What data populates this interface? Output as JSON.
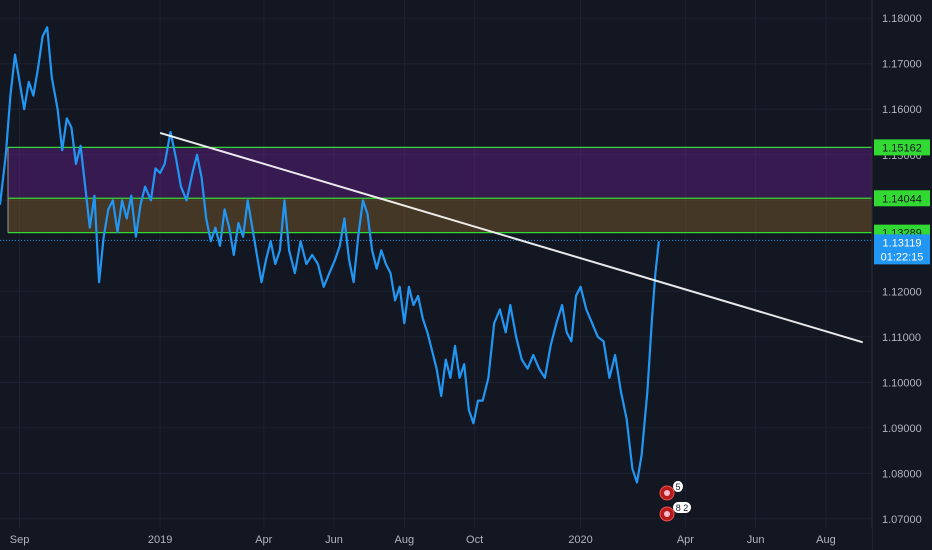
{
  "chart_data": {
    "type": "line",
    "title": "",
    "xlabel": "",
    "ylabel": "",
    "x_range": [
      "2018-08-15",
      "2020-09-10"
    ],
    "ylim": [
      1.068,
      1.184
    ],
    "grid": true,
    "legend": "none",
    "x_ticks": [
      {
        "date": "2018-09-01",
        "label": "Sep"
      },
      {
        "date": "2019-01-01",
        "label": "2019"
      },
      {
        "date": "2019-04-01",
        "label": "Apr"
      },
      {
        "date": "2019-06-01",
        "label": "Jun"
      },
      {
        "date": "2019-08-01",
        "label": "Aug"
      },
      {
        "date": "2019-10-01",
        "label": "Oct"
      },
      {
        "date": "2020-01-01",
        "label": "2020"
      },
      {
        "date": "2020-04-01",
        "label": "Apr"
      },
      {
        "date": "2020-06-01",
        "label": "Jun"
      },
      {
        "date": "2020-08-01",
        "label": "Aug"
      }
    ],
    "y_ticks": [
      {
        "value": 1.18,
        "label": "1.18000"
      },
      {
        "value": 1.17,
        "label": "1.17000"
      },
      {
        "value": 1.16,
        "label": "1.16000"
      },
      {
        "value": 1.15,
        "label": "1.15000"
      },
      {
        "value": 1.14,
        "label": "1.14000"
      },
      {
        "value": 1.12,
        "label": "1.12000"
      },
      {
        "value": 1.11,
        "label": "1.11000"
      },
      {
        "value": 1.1,
        "label": "1.10000"
      },
      {
        "value": 1.09,
        "label": "1.09000"
      },
      {
        "value": 1.08,
        "label": "1.08000"
      },
      {
        "value": 1.07,
        "label": "1.07000"
      }
    ],
    "series": [
      {
        "color": "#2196f3",
        "points": [
          [
            "2018-08-15",
            1.139
          ],
          [
            "2018-08-20",
            1.15
          ],
          [
            "2018-08-24",
            1.163
          ],
          [
            "2018-08-28",
            1.172
          ],
          [
            "2018-09-01",
            1.166
          ],
          [
            "2018-09-05",
            1.16
          ],
          [
            "2018-09-09",
            1.166
          ],
          [
            "2018-09-13",
            1.163
          ],
          [
            "2018-09-17",
            1.169
          ],
          [
            "2018-09-21",
            1.176
          ],
          [
            "2018-09-25",
            1.178
          ],
          [
            "2018-09-29",
            1.167
          ],
          [
            "2018-10-04",
            1.16
          ],
          [
            "2018-10-08",
            1.151
          ],
          [
            "2018-10-12",
            1.158
          ],
          [
            "2018-10-16",
            1.156
          ],
          [
            "2018-10-20",
            1.148
          ],
          [
            "2018-10-24",
            1.152
          ],
          [
            "2018-10-28",
            1.143
          ],
          [
            "2018-11-01",
            1.134
          ],
          [
            "2018-11-05",
            1.141
          ],
          [
            "2018-11-09",
            1.122
          ],
          [
            "2018-11-13",
            1.132
          ],
          [
            "2018-11-17",
            1.138
          ],
          [
            "2018-11-21",
            1.14
          ],
          [
            "2018-11-25",
            1.133
          ],
          [
            "2018-11-29",
            1.14
          ],
          [
            "2018-12-03",
            1.136
          ],
          [
            "2018-12-07",
            1.141
          ],
          [
            "2018-12-11",
            1.132
          ],
          [
            "2018-12-15",
            1.139
          ],
          [
            "2018-12-19",
            1.143
          ],
          [
            "2018-12-24",
            1.14
          ],
          [
            "2018-12-28",
            1.147
          ],
          [
            "2019-01-01",
            1.146
          ],
          [
            "2019-01-05",
            1.148
          ],
          [
            "2019-01-10",
            1.155
          ],
          [
            "2019-01-15",
            1.149
          ],
          [
            "2019-01-19",
            1.143
          ],
          [
            "2019-01-24",
            1.14
          ],
          [
            "2019-01-29",
            1.146
          ],
          [
            "2019-02-02",
            1.15
          ],
          [
            "2019-02-06",
            1.145
          ],
          [
            "2019-02-10",
            1.136
          ],
          [
            "2019-02-14",
            1.131
          ],
          [
            "2019-02-18",
            1.134
          ],
          [
            "2019-02-22",
            1.13
          ],
          [
            "2019-02-26",
            1.138
          ],
          [
            "2019-03-02",
            1.134
          ],
          [
            "2019-03-06",
            1.128
          ],
          [
            "2019-03-10",
            1.135
          ],
          [
            "2019-03-14",
            1.132
          ],
          [
            "2019-03-18",
            1.14
          ],
          [
            "2019-03-22",
            1.134
          ],
          [
            "2019-03-26",
            1.128
          ],
          [
            "2019-03-30",
            1.122
          ],
          [
            "2019-04-03",
            1.127
          ],
          [
            "2019-04-07",
            1.131
          ],
          [
            "2019-04-11",
            1.126
          ],
          [
            "2019-04-15",
            1.129
          ],
          [
            "2019-04-19",
            1.14
          ],
          [
            "2019-04-23",
            1.129
          ],
          [
            "2019-04-28",
            1.124
          ],
          [
            "2019-05-03",
            1.131
          ],
          [
            "2019-05-08",
            1.126
          ],
          [
            "2019-05-13",
            1.128
          ],
          [
            "2019-05-18",
            1.126
          ],
          [
            "2019-05-23",
            1.121
          ],
          [
            "2019-05-28",
            1.124
          ],
          [
            "2019-06-02",
            1.127
          ],
          [
            "2019-06-06",
            1.13
          ],
          [
            "2019-06-10",
            1.136
          ],
          [
            "2019-06-14",
            1.127
          ],
          [
            "2019-06-18",
            1.122
          ],
          [
            "2019-06-22",
            1.132
          ],
          [
            "2019-06-26",
            1.14
          ],
          [
            "2019-06-30",
            1.137
          ],
          [
            "2019-07-04",
            1.129
          ],
          [
            "2019-07-08",
            1.125
          ],
          [
            "2019-07-12",
            1.129
          ],
          [
            "2019-07-16",
            1.126
          ],
          [
            "2019-07-20",
            1.124
          ],
          [
            "2019-07-24",
            1.118
          ],
          [
            "2019-07-28",
            1.121
          ],
          [
            "2019-08-01",
            1.113
          ],
          [
            "2019-08-05",
            1.121
          ],
          [
            "2019-08-09",
            1.117
          ],
          [
            "2019-08-13",
            1.119
          ],
          [
            "2019-08-17",
            1.114
          ],
          [
            "2019-08-21",
            1.111
          ],
          [
            "2019-08-25",
            1.107
          ],
          [
            "2019-08-29",
            1.103
          ],
          [
            "2019-09-02",
            1.097
          ],
          [
            "2019-09-06",
            1.105
          ],
          [
            "2019-09-10",
            1.101
          ],
          [
            "2019-09-14",
            1.108
          ],
          [
            "2019-09-18",
            1.101
          ],
          [
            "2019-09-22",
            1.104
          ],
          [
            "2019-09-26",
            1.094
          ],
          [
            "2019-09-30",
            1.091
          ],
          [
            "2019-10-04",
            1.096
          ],
          [
            "2019-10-08",
            1.096
          ],
          [
            "2019-10-13",
            1.101
          ],
          [
            "2019-10-18",
            1.113
          ],
          [
            "2019-10-23",
            1.116
          ],
          [
            "2019-10-28",
            1.111
          ],
          [
            "2019-11-01",
            1.117
          ],
          [
            "2019-11-06",
            1.11
          ],
          [
            "2019-11-11",
            1.105
          ],
          [
            "2019-11-16",
            1.103
          ],
          [
            "2019-11-21",
            1.106
          ],
          [
            "2019-11-26",
            1.103
          ],
          [
            "2019-12-01",
            1.101
          ],
          [
            "2019-12-06",
            1.108
          ],
          [
            "2019-12-11",
            1.113
          ],
          [
            "2019-12-16",
            1.117
          ],
          [
            "2019-12-20",
            1.111
          ],
          [
            "2019-12-24",
            1.109
          ],
          [
            "2019-12-28",
            1.119
          ],
          [
            "2020-01-01",
            1.121
          ],
          [
            "2020-01-06",
            1.116
          ],
          [
            "2020-01-11",
            1.113
          ],
          [
            "2020-01-16",
            1.11
          ],
          [
            "2020-01-21",
            1.109
          ],
          [
            "2020-01-26",
            1.101
          ],
          [
            "2020-01-31",
            1.106
          ],
          [
            "2020-02-05",
            1.098
          ],
          [
            "2020-02-10",
            1.092
          ],
          [
            "2020-02-15",
            1.081
          ],
          [
            "2020-02-19",
            1.078
          ],
          [
            "2020-02-23",
            1.084
          ],
          [
            "2020-02-28",
            1.098
          ],
          [
            "2020-03-03",
            1.114
          ],
          [
            "2020-03-06",
            1.124
          ],
          [
            "2020-03-09",
            1.131
          ]
        ]
      }
    ],
    "trendline": {
      "color": "#ffffff",
      "start": [
        "2019-01-01",
        1.1548
      ],
      "end": [
        "2020-09-02",
        1.1088
      ]
    },
    "zones": [
      {
        "from": 1.14044,
        "to": 1.15162,
        "color": "#7b1fa2"
      },
      {
        "from": 1.13289,
        "to": 1.14044,
        "color": "#a1722a"
      }
    ],
    "levels": [
      {
        "value": 1.15162,
        "label": "1.15162",
        "color": "#33d933"
      },
      {
        "value": 1.14044,
        "label": "1.14044",
        "color": "#33d933"
      },
      {
        "value": 1.13289,
        "label": "1.13289",
        "color": "#33d933"
      }
    ],
    "current_price": {
      "value": 1.13119,
      "label": "1.13119",
      "countdown": "01:22:15",
      "color": "#2196f3"
    },
    "event_markers": [
      {
        "icon": "event-badge-icon",
        "count": "5"
      },
      {
        "icon": "event-badge-icon",
        "count": "8 2"
      }
    ]
  }
}
